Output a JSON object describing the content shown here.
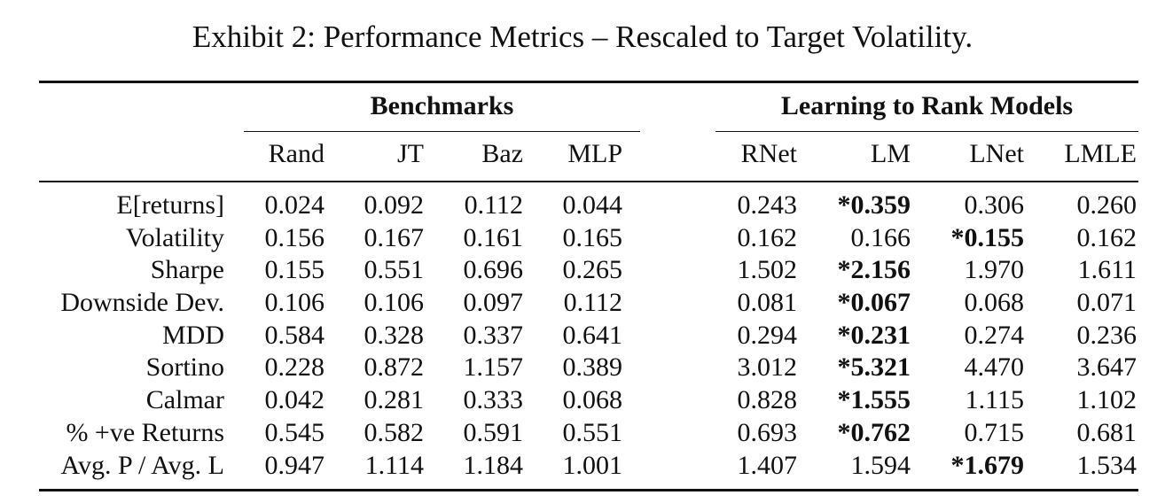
{
  "title": "Exhibit 2: Performance Metrics – Rescaled to Target Volatility.",
  "groups": {
    "benchmarks": "Benchmarks",
    "ltr": "Learning to Rank Models"
  },
  "columns": [
    "Rand",
    "JT",
    "Baz",
    "MLP",
    "RNet",
    "LM",
    "LNet",
    "LMLE"
  ],
  "rows": [
    {
      "label": "E[returns]",
      "values": [
        "0.024",
        "0.092",
        "0.112",
        "0.044",
        "0.243",
        "*0.359",
        "0.306",
        "0.260"
      ],
      "best": 5
    },
    {
      "label": "Volatility",
      "values": [
        "0.156",
        "0.167",
        "0.161",
        "0.165",
        "0.162",
        "0.166",
        "*0.155",
        "0.162"
      ],
      "best": 6
    },
    {
      "label": "Sharpe",
      "values": [
        "0.155",
        "0.551",
        "0.696",
        "0.265",
        "1.502",
        "*2.156",
        "1.970",
        "1.611"
      ],
      "best": 5
    },
    {
      "label": "Downside Dev.",
      "values": [
        "0.106",
        "0.106",
        "0.097",
        "0.112",
        "0.081",
        "*0.067",
        "0.068",
        "0.071"
      ],
      "best": 5
    },
    {
      "label": "MDD",
      "values": [
        "0.584",
        "0.328",
        "0.337",
        "0.641",
        "0.294",
        "*0.231",
        "0.274",
        "0.236"
      ],
      "best": 5
    },
    {
      "label": "Sortino",
      "values": [
        "0.228",
        "0.872",
        "1.157",
        "0.389",
        "3.012",
        "*5.321",
        "4.470",
        "3.647"
      ],
      "best": 5
    },
    {
      "label": "Calmar",
      "values": [
        "0.042",
        "0.281",
        "0.333",
        "0.068",
        "0.828",
        "*1.555",
        "1.115",
        "1.102"
      ],
      "best": 5
    },
    {
      "label": "% +ve Returns",
      "values": [
        "0.545",
        "0.582",
        "0.591",
        "0.551",
        "0.693",
        "*0.762",
        "0.715",
        "0.681"
      ],
      "best": 5
    },
    {
      "label": "Avg. P / Avg. L",
      "values": [
        "0.947",
        "1.114",
        "1.184",
        "1.001",
        "1.407",
        "1.594",
        "*1.679",
        "1.534"
      ],
      "best": 6
    }
  ]
}
